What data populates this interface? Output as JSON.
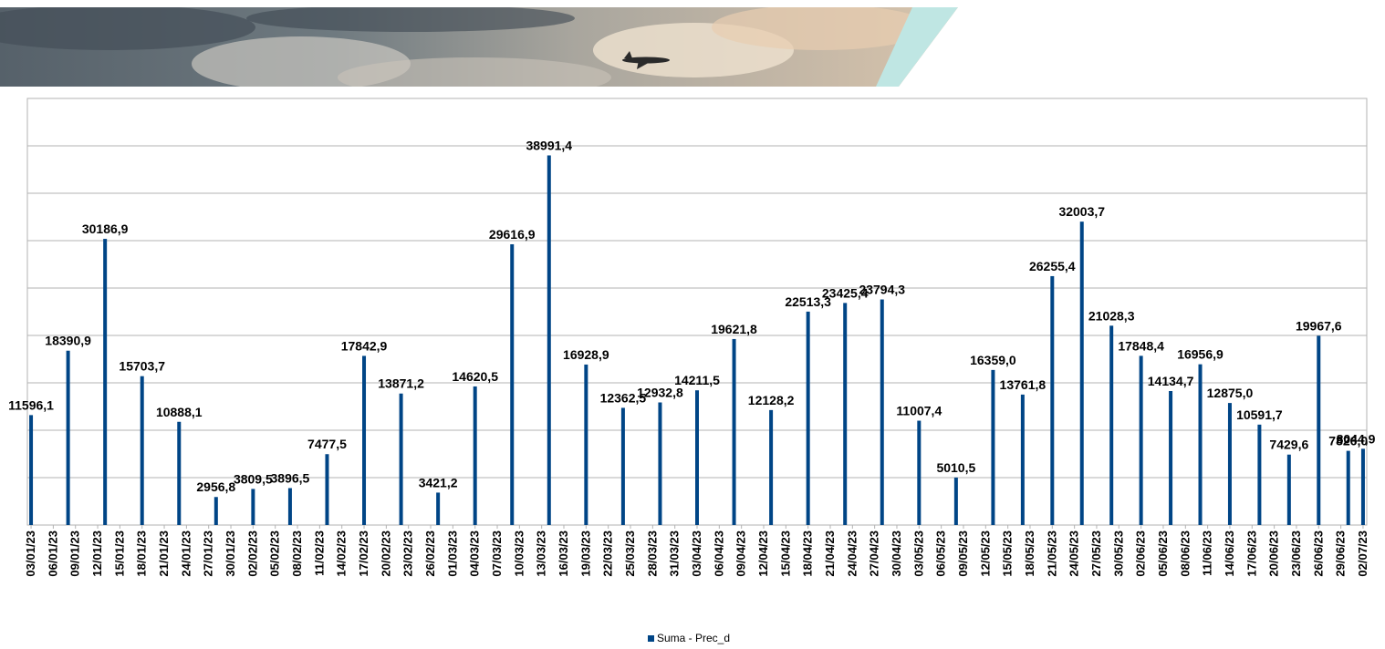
{
  "chart_data": {
    "type": "bar",
    "categories": [
      "03/01/23",
      null,
      null,
      "06/01/23",
      null,
      null,
      "09/01/23",
      null,
      null,
      "12/01/23",
      null,
      null,
      "15/01/23",
      null,
      null,
      "18/01/23",
      null,
      null,
      "21/01/23",
      null,
      null,
      "24/01/23",
      null,
      null,
      "27/01/23",
      null,
      null,
      "30/01/23",
      null,
      null,
      "02/02/23",
      null,
      null,
      "05/02/23",
      null,
      null,
      "08/02/23",
      null,
      null,
      "11/02/23",
      null,
      null,
      "14/02/23",
      null,
      null,
      "17/02/23",
      null,
      null,
      "20/02/23",
      null,
      null,
      "23/02/23",
      null,
      null,
      "26/02/23",
      null,
      null,
      "01/03/23",
      null,
      null,
      "04/03/23",
      null,
      null,
      "07/03/23",
      null,
      null,
      "10/03/23",
      null,
      null,
      "13/03/23",
      null,
      null,
      "16/03/23",
      null,
      null,
      "19/03/23",
      null,
      null,
      "22/03/23",
      null,
      null,
      "25/03/23",
      null,
      null,
      "28/03/23",
      null,
      null,
      "31/03/23",
      null,
      null,
      "03/04/23",
      null,
      null,
      "06/04/23",
      null,
      null,
      "09/04/23",
      null,
      null,
      "12/04/23",
      null,
      null,
      "15/04/23",
      null,
      null,
      "18/04/23",
      null,
      null,
      "21/04/23",
      null,
      null,
      "24/04/23",
      null,
      null,
      "27/04/23",
      null,
      null,
      "30/04/23",
      null,
      null,
      "03/05/23",
      null,
      null,
      "06/05/23",
      null,
      null,
      "09/05/23",
      null,
      null,
      "12/05/23",
      null,
      null,
      "15/05/23",
      null,
      null,
      "18/05/23",
      null,
      null,
      "21/05/23",
      null,
      null,
      "24/05/23",
      null,
      null,
      "27/05/23",
      null,
      null,
      "30/05/23",
      null,
      null,
      "02/06/23",
      null,
      null,
      "05/06/23",
      null,
      null,
      "08/06/23",
      null,
      null,
      "11/06/23",
      null,
      null,
      "14/06/23",
      null,
      null,
      "17/06/23",
      null,
      null,
      "20/06/23",
      null,
      null,
      "23/06/23",
      null,
      null,
      "26/06/23",
      null,
      null,
      "29/06/23",
      null,
      null,
      "02/07/23"
    ],
    "series": [
      {
        "name": "Suma - Prec_d",
        "color": "#004586",
        "values": [
          11596.1,
          null,
          null,
          null,
          null,
          18390.9,
          null,
          null,
          null,
          null,
          30186.9,
          null,
          null,
          null,
          null,
          15703.7,
          null,
          null,
          null,
          null,
          10888.1,
          null,
          null,
          null,
          null,
          2956.8,
          null,
          null,
          null,
          null,
          3809.5,
          null,
          null,
          null,
          null,
          3896.5,
          null,
          null,
          null,
          null,
          7477.5,
          null,
          null,
          null,
          null,
          17842.9,
          null,
          null,
          null,
          null,
          13871.2,
          null,
          null,
          null,
          null,
          3421.2,
          null,
          null,
          null,
          null,
          14620.5,
          null,
          null,
          null,
          null,
          29616.9,
          null,
          null,
          null,
          null,
          38991.4,
          null,
          null,
          null,
          null,
          16928.9,
          null,
          null,
          null,
          null,
          12362.5,
          null,
          null,
          null,
          null,
          12932.8,
          null,
          null,
          null,
          null,
          14211.5,
          null,
          null,
          null,
          null,
          19621.8,
          null,
          null,
          null,
          null,
          12128.2,
          null,
          null,
          null,
          null,
          22513.3,
          null,
          null,
          null,
          null,
          23425.4,
          null,
          null,
          null,
          null,
          23794.3,
          null,
          null,
          null,
          null,
          11007.4,
          null,
          null,
          null,
          null,
          5010.5,
          null,
          null,
          null,
          null,
          16359.0,
          null,
          null,
          null,
          13761.8,
          null,
          null,
          null,
          26255.4,
          null,
          null,
          null,
          32003.7,
          null,
          null,
          null,
          21028.3,
          null,
          null,
          null,
          17848.4,
          null,
          null,
          null,
          14134.7,
          null,
          null,
          null,
          16956.9,
          null,
          null,
          null,
          12875.0,
          null,
          null,
          null,
          10591.7,
          null,
          null,
          null,
          7429.6,
          null,
          null,
          null,
          19967.6,
          null,
          null,
          null,
          7826.0,
          null,
          8044.9
        ],
        "value_labels": [
          "11596,1",
          null,
          null,
          null,
          null,
          "18390,9",
          null,
          null,
          null,
          null,
          "30186,9",
          null,
          null,
          null,
          null,
          "15703,7",
          null,
          null,
          null,
          null,
          "10888,1",
          null,
          null,
          null,
          null,
          "2956,8",
          null,
          null,
          null,
          null,
          "3809,5",
          null,
          null,
          null,
          null,
          "3896,5",
          null,
          null,
          null,
          null,
          "7477,5",
          null,
          null,
          null,
          null,
          "17842,9",
          null,
          null,
          null,
          null,
          "13871,2",
          null,
          null,
          null,
          null,
          "3421,2",
          null,
          null,
          null,
          null,
          "14620,5",
          null,
          null,
          null,
          null,
          "29616,9",
          null,
          null,
          null,
          null,
          "38991,4",
          null,
          null,
          null,
          null,
          "16928,9",
          null,
          null,
          null,
          null,
          "12362,5",
          null,
          null,
          null,
          null,
          "12932,8",
          null,
          null,
          null,
          null,
          "14211,5",
          null,
          null,
          null,
          null,
          "19621,8",
          null,
          null,
          null,
          null,
          "12128,2",
          null,
          null,
          null,
          null,
          "22513,3",
          null,
          null,
          null,
          null,
          "23425,4",
          null,
          null,
          null,
          null,
          "23794,3",
          null,
          null,
          null,
          null,
          "11007,4",
          null,
          null,
          null,
          null,
          "5010,5",
          null,
          null,
          null,
          null,
          "16359,0",
          null,
          null,
          null,
          "13761,8",
          null,
          null,
          null,
          "26255,4",
          null,
          null,
          null,
          "32003,7",
          null,
          null,
          null,
          "21028,3",
          null,
          null,
          null,
          "17848,4",
          null,
          null,
          null,
          "14134,7",
          null,
          null,
          null,
          "16956,9",
          null,
          null,
          null,
          "12875,0",
          null,
          null,
          null,
          "10591,7",
          null,
          null,
          null,
          "7429,6",
          null,
          null,
          null,
          "19967,6",
          null,
          null,
          null,
          "7826,0",
          null,
          "8044,9"
        ]
      }
    ],
    "ylim": [
      0,
      45000
    ],
    "yticks": [
      0,
      5000,
      10000,
      15000,
      20000,
      25000,
      30000,
      35000,
      40000,
      45000
    ],
    "grid": true,
    "legend": "bottom"
  }
}
